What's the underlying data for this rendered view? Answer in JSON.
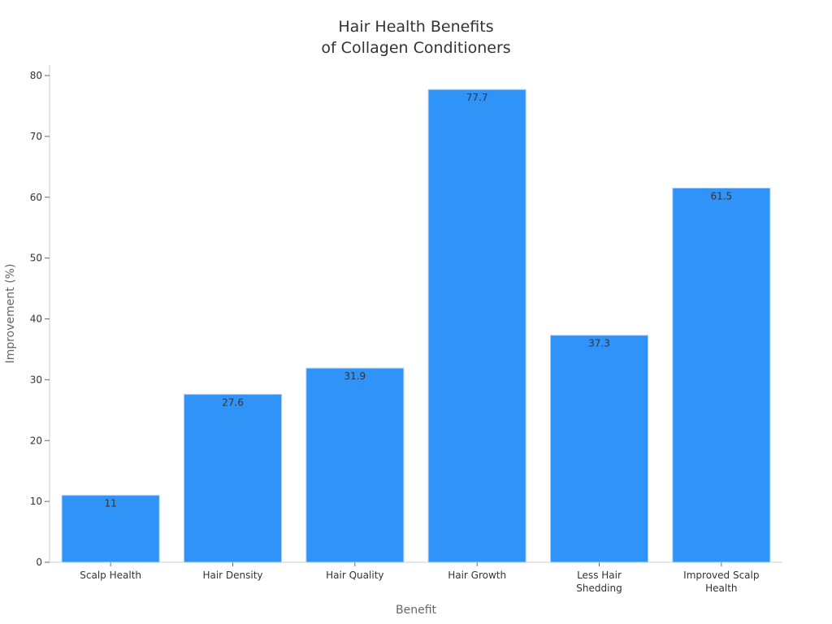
{
  "chart_data": {
    "type": "bar",
    "title": "Hair Health Benefits of Collagen Conditioners",
    "title_lines": [
      "Hair Health Benefits",
      "of Collagen Conditioners"
    ],
    "xlabel": "Benefit",
    "ylabel": "Improvement (%)",
    "categories": [
      "Scalp Health",
      "Hair Density",
      "Hair Quality",
      "Hair Growth",
      "Less Hair Shedding",
      "Improved Scalp Health"
    ],
    "category_lines": [
      [
        "Scalp Health"
      ],
      [
        "Hair Density"
      ],
      [
        "Hair Quality"
      ],
      [
        "Hair Growth"
      ],
      [
        "Less Hair",
        "Shedding"
      ],
      [
        "Improved Scalp",
        "Health"
      ]
    ],
    "values": [
      11,
      27.6,
      31.9,
      77.7,
      37.3,
      61.5
    ],
    "value_labels": [
      "11",
      "27.6",
      "31.9",
      "77.7",
      "37.3",
      "61.5"
    ],
    "ylim": [
      0,
      80
    ],
    "yticks": [
      0,
      10,
      20,
      30,
      40,
      50,
      60,
      70,
      80
    ],
    "grid": false,
    "legend": null,
    "colors": {
      "bar": "#3093f7",
      "bar_edge": "#a8cdf7",
      "axis": "#cccccc",
      "text": "#333333",
      "axis_title": "#666666"
    }
  }
}
